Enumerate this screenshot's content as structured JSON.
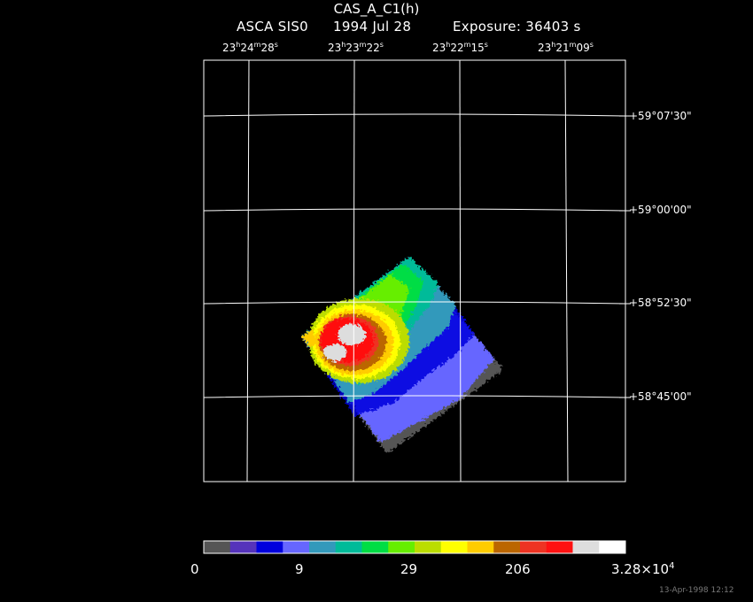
{
  "title": "CAS_A_C1(h)",
  "subtitle": {
    "instrument": "ASCA SIS0",
    "date": "1994 Jul 28",
    "exposure": "Exposure: 36403 s"
  },
  "ra_labels": [
    {
      "h": "23",
      "m": "24",
      "s": "28"
    },
    {
      "h": "23",
      "m": "23",
      "s": "22"
    },
    {
      "h": "23",
      "m": "22",
      "s": "15"
    },
    {
      "h": "23",
      "m": "21",
      "s": "09"
    }
  ],
  "dec_labels": [
    "+59°07'30\"",
    "+59°00'00\"",
    "+58°52'30\"",
    "+58°45'00\""
  ],
  "colorbar": {
    "colors": [
      "#555555",
      "#5533bb",
      "#0000dd",
      "#6666ff",
      "#3399bb",
      "#00bb99",
      "#00dd44",
      "#66ee00",
      "#bbdd00",
      "#ffff00",
      "#ffcc00",
      "#bb6600",
      "#ee3322",
      "#ff1111",
      "#dddddd",
      "#ffffff"
    ],
    "labels": [
      "0",
      "9",
      "29",
      "206"
    ],
    "max_label": {
      "mantissa": "3.28×10",
      "exp": "4"
    }
  },
  "footer": "13-Apr-1998 12:12"
}
